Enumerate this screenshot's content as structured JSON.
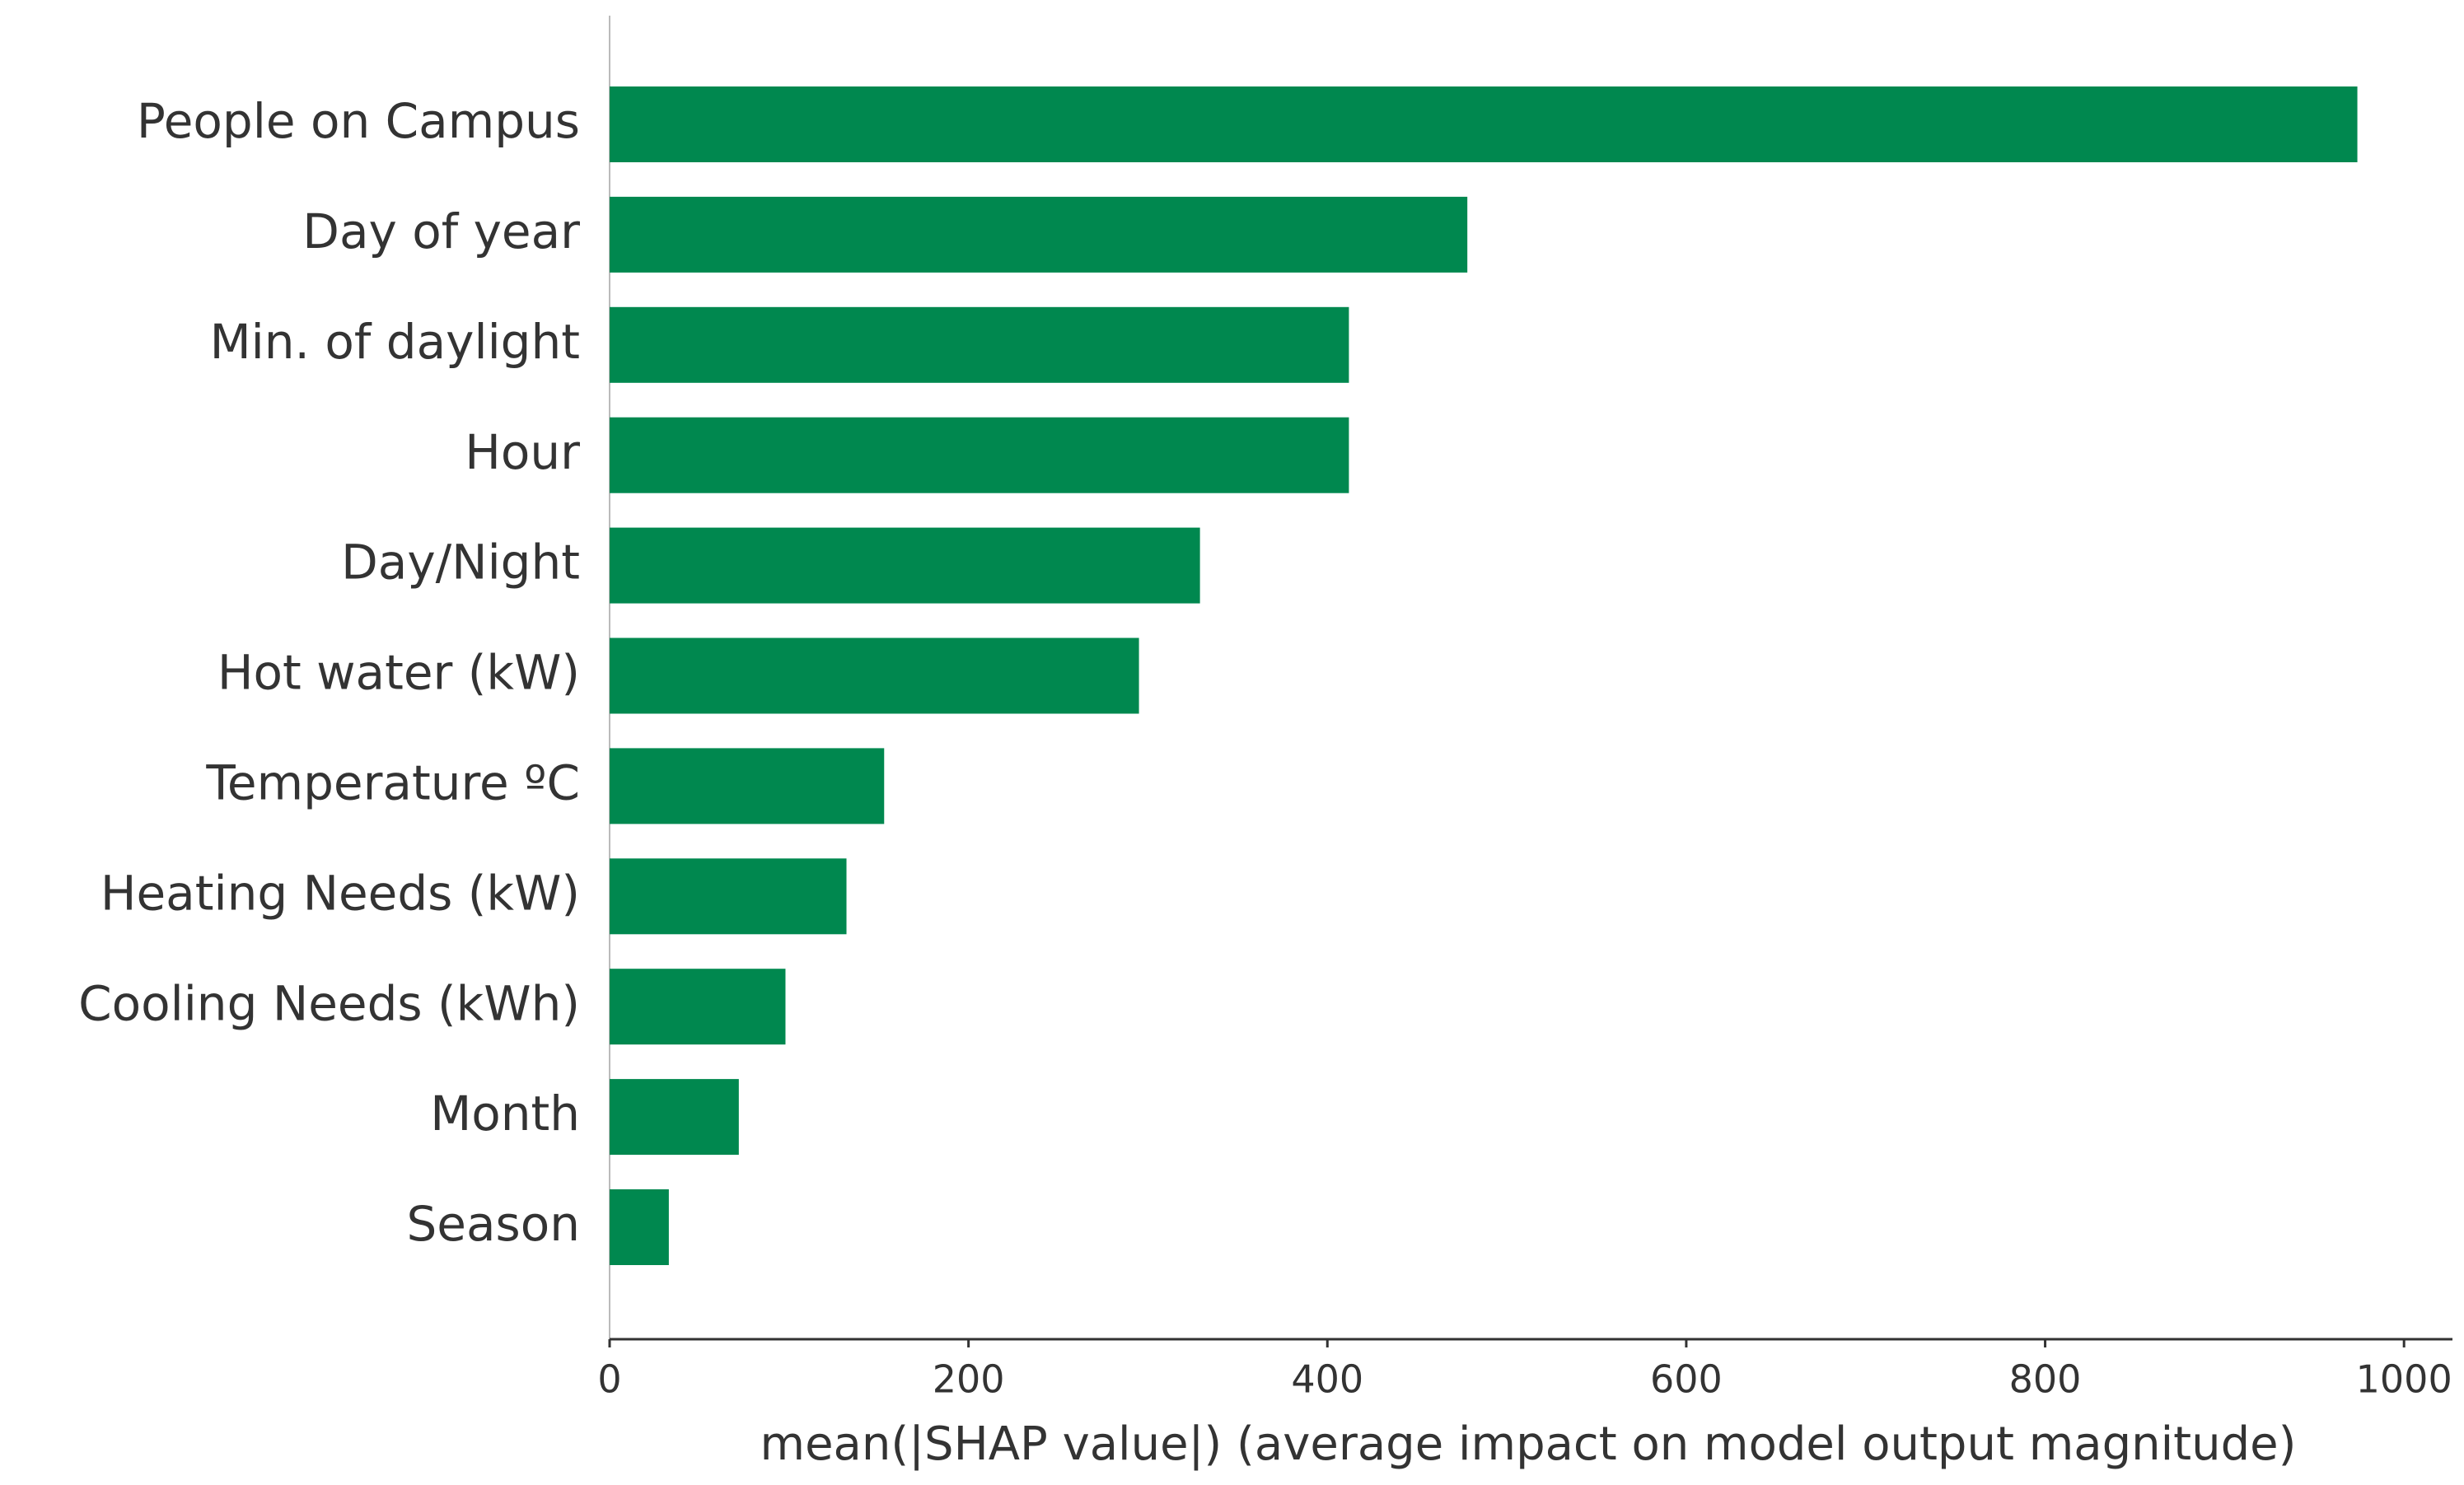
{
  "chart_data": {
    "type": "barh",
    "xlabel": "mean(|SHAP value|) (average impact on model output magnitude)",
    "categories": [
      "People on Campus",
      "Day of year",
      "Min. of daylight",
      "Hour",
      "Day/Night",
      "Hot water (kW)",
      "Temperature ºC",
      "Heating Needs (kW)",
      "Cooling Needs (kWh)",
      "Month",
      "Season"
    ],
    "values": [
      974,
      478,
      412,
      412,
      329,
      295,
      153,
      132,
      98,
      72,
      33
    ],
    "color": "#00884f",
    "xlim": [
      0,
      1027
    ],
    "xticks": [
      0,
      200,
      400,
      600,
      800,
      1000
    ]
  }
}
